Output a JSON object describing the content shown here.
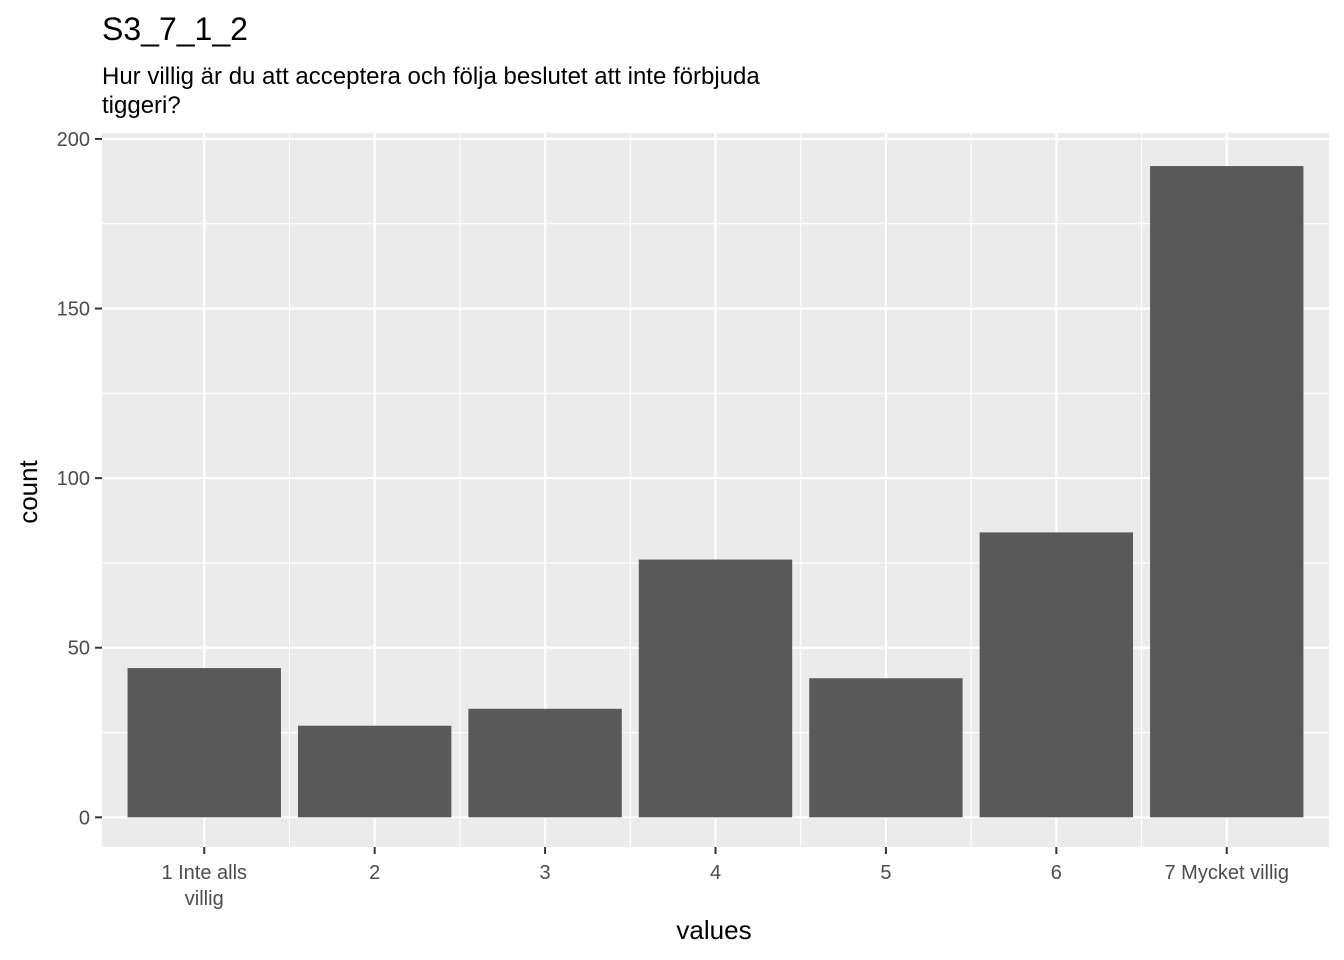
{
  "chart_data": {
    "type": "bar",
    "title": "S3_7_1_2",
    "subtitle_lines": [
      "Hur villig är du att acceptera och följa beslutet att inte förbjuda",
      "tiggeri?"
    ],
    "xlabel": "values",
    "ylabel": "count",
    "categories": [
      [
        "1 Inte alls",
        "villig"
      ],
      [
        "2"
      ],
      [
        "3"
      ],
      [
        "4"
      ],
      [
        "5"
      ],
      [
        "6"
      ],
      [
        "7 Mycket villig"
      ]
    ],
    "values": [
      44,
      27,
      32,
      76,
      41,
      84,
      192
    ],
    "ylim": [
      -8.75,
      201.75
    ],
    "yticks": [
      0,
      50,
      100,
      150,
      200
    ],
    "grid": true,
    "colors": {
      "panel": "#EBEBEB",
      "grid_major": "#FFFFFF",
      "bar": "#595959",
      "tick": "#333333",
      "tick_text": "#4D4D4D"
    }
  }
}
